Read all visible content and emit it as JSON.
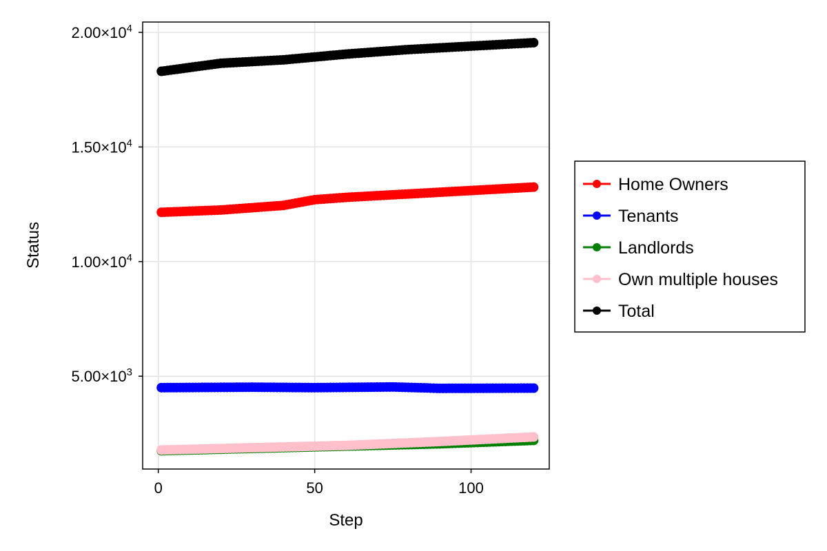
{
  "chart_data": {
    "type": "scatter",
    "title": "",
    "xlabel": "Step",
    "ylabel": "Status",
    "xlim": [
      -5,
      125
    ],
    "ylim": [
      950,
      20450
    ],
    "xticks": [
      0,
      50,
      100
    ],
    "xtick_labels": [
      "0",
      "50",
      "100"
    ],
    "yticks": [
      5000,
      10000,
      15000,
      20000
    ],
    "ytick_labels": [
      {
        "mantissa": "5.00×10",
        "exp": "3"
      },
      {
        "mantissa": "1.00×10",
        "exp": "4"
      },
      {
        "mantissa": "1.50×10",
        "exp": "4"
      },
      {
        "mantissa": "2.00×10",
        "exp": "4"
      }
    ],
    "grid": true,
    "legend_position": "right",
    "x_range": [
      1,
      120
    ],
    "series": [
      {
        "name": "Home Owners",
        "color": "#ff0000",
        "anchors": [
          [
            1,
            12150
          ],
          [
            20,
            12250
          ],
          [
            40,
            12450
          ],
          [
            50,
            12700
          ],
          [
            60,
            12800
          ],
          [
            80,
            12950
          ],
          [
            100,
            13100
          ],
          [
            120,
            13250
          ]
        ]
      },
      {
        "name": "Tenants",
        "color": "#0000ff",
        "anchors": [
          [
            1,
            4500
          ],
          [
            30,
            4520
          ],
          [
            50,
            4500
          ],
          [
            75,
            4530
          ],
          [
            90,
            4470
          ],
          [
            120,
            4480
          ]
        ]
      },
      {
        "name": "Landlords",
        "color": "#008000",
        "anchors": [
          [
            1,
            1750
          ],
          [
            30,
            1850
          ],
          [
            60,
            1950
          ],
          [
            90,
            2050
          ],
          [
            120,
            2200
          ]
        ]
      },
      {
        "name": "Own multiple houses",
        "color": "#ffc0cb",
        "anchors": [
          [
            1,
            1780
          ],
          [
            30,
            1880
          ],
          [
            60,
            1980
          ],
          [
            90,
            2150
          ],
          [
            120,
            2350
          ]
        ]
      },
      {
        "name": "Total",
        "color": "#000000",
        "anchors": [
          [
            1,
            18300
          ],
          [
            20,
            18650
          ],
          [
            40,
            18800
          ],
          [
            60,
            19050
          ],
          [
            80,
            19250
          ],
          [
            100,
            19400
          ],
          [
            120,
            19550
          ]
        ]
      }
    ]
  }
}
